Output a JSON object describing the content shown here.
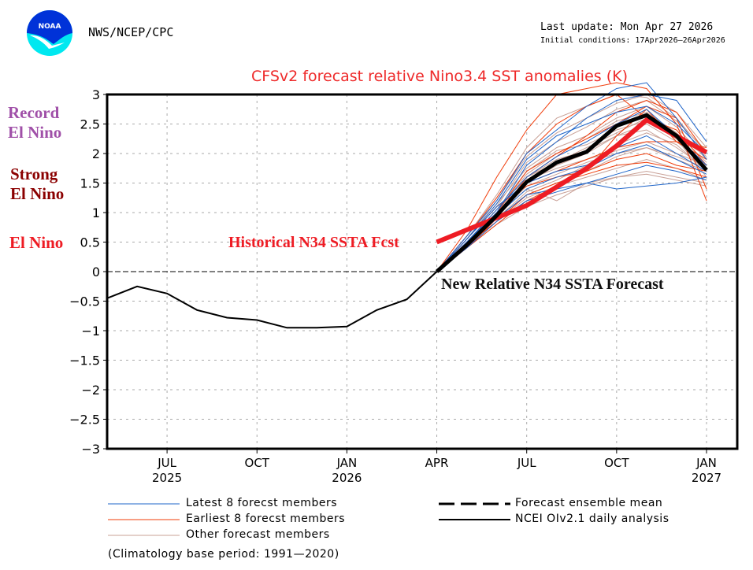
{
  "header": {
    "org": "NWS/NCEP/CPC",
    "logo_text": "NOAA",
    "last_update": "Last update: Mon Apr 27 2026",
    "initial_conditions": "Initial conditions: 17Apr2026—26Apr2026"
  },
  "categories": {
    "record": [
      "Record",
      "El Nino"
    ],
    "strong": [
      "Strong",
      "El Nino"
    ],
    "elnino": "El Nino",
    "colors": {
      "record": "#a050a8",
      "strong": "#8b0000",
      "elnino": "#ee1c24"
    }
  },
  "annotations": {
    "historical": "Historical N34 SSTA Fcst",
    "new_relative": "New Relative N34 SSTA Forecast"
  },
  "legend": {
    "latest": "Latest 8 forecst members",
    "earliest": "Earliest 8 forecst members",
    "other": "Other forecast members",
    "mean": "Forecast ensemble mean",
    "analysis": "NCEI OIv2.1 daily analysis",
    "climatology": "(Climatology base period: 1991—2020)"
  },
  "chart_data": {
    "type": "line",
    "title": "CFSv2 forecast relative Nino3.4 SST anomalies (K)",
    "xlabel": "",
    "ylabel": "",
    "ylim": [
      -3,
      3
    ],
    "xlim_months": [
      0,
      20.6
    ],
    "x_origin": "May 2025",
    "yticks": [
      3,
      2.5,
      2,
      1.5,
      1,
      0.5,
      0,
      -0.5,
      -1,
      -1.5,
      -2,
      -2.5,
      -3
    ],
    "ytick_labels": [
      "3",
      "2.5",
      "2",
      "1.5",
      "1",
      "0.5",
      "0",
      "−0.5",
      "−1",
      "−1.5",
      "−2",
      "−2.5",
      "−3"
    ],
    "xticks": [
      {
        "m": 2,
        "label": "JUL",
        "year": "2025"
      },
      {
        "m": 5,
        "label": "OCT",
        "year": ""
      },
      {
        "m": 8,
        "label": "JAN",
        "year": "2026"
      },
      {
        "m": 11,
        "label": "APR",
        "year": ""
      },
      {
        "m": 14,
        "label": "JUL",
        "year": ""
      },
      {
        "m": 17,
        "label": "OCT",
        "year": ""
      },
      {
        "m": 20,
        "label": "JAN",
        "year": "2027"
      }
    ],
    "grid": true,
    "colors": {
      "latest": "#1e64c8",
      "earliest": "#f03c0a",
      "other": "#c8a096",
      "mean": "#000000",
      "analysis": "#000000",
      "historical": "#ee1c24"
    },
    "series": [
      {
        "name": "NCEI OIv2.1 daily analysis",
        "style": "analysis",
        "x": [
          0,
          1,
          2,
          3,
          4,
          5,
          6,
          7,
          8,
          9,
          10,
          11
        ],
        "values": [
          -0.45,
          -0.25,
          -0.37,
          -0.65,
          -0.78,
          -0.82,
          -0.95,
          -0.95,
          -0.93,
          -0.65,
          -0.47,
          0.0
        ]
      },
      {
        "name": "Forecast ensemble mean",
        "style": "mean",
        "x": [
          11,
          12,
          13,
          14,
          15,
          16,
          17,
          18,
          19,
          20
        ],
        "values": [
          0.0,
          0.45,
          0.95,
          1.52,
          1.85,
          2.03,
          2.47,
          2.65,
          2.3,
          1.72
        ]
      },
      {
        "name": "Historical N34 SSTA Fcst",
        "style": "historical",
        "x": [
          11,
          14,
          16,
          17,
          18,
          20
        ],
        "values": [
          0.5,
          1.12,
          1.75,
          2.13,
          2.57,
          2.02
        ]
      },
      {
        "name": "Latest 8 forecst members",
        "style": "latest",
        "members": [
          [
            0.0,
            0.6,
            1.2,
            2.0,
            2.4,
            2.8,
            3.1,
            3.2,
            2.6,
            1.9
          ],
          [
            0.0,
            0.55,
            1.1,
            1.5,
            1.7,
            1.8,
            2.1,
            2.3,
            2.0,
            1.7
          ],
          [
            0.0,
            0.45,
            0.9,
            1.3,
            1.4,
            1.5,
            1.4,
            1.45,
            1.5,
            1.6
          ],
          [
            0.0,
            0.5,
            1.0,
            1.8,
            2.2,
            2.6,
            2.9,
            3.0,
            2.9,
            2.2
          ],
          [
            0.0,
            0.5,
            1.05,
            1.6,
            1.95,
            2.2,
            2.5,
            2.75,
            2.3,
            1.8
          ],
          [
            0.0,
            0.4,
            0.85,
            1.2,
            1.35,
            1.5,
            1.65,
            1.8,
            1.7,
            1.55
          ],
          [
            0.0,
            0.55,
            1.15,
            1.9,
            2.3,
            2.5,
            2.7,
            2.8,
            2.5,
            2.0
          ],
          [
            0.0,
            0.45,
            0.95,
            1.4,
            1.6,
            1.75,
            2.0,
            2.15,
            1.9,
            1.65
          ]
        ]
      },
      {
        "name": "Earliest 8 forecst members",
        "style": "earliest",
        "members": [
          [
            0.0,
            0.7,
            1.6,
            2.4,
            3.0,
            3.1,
            3.2,
            3.1,
            2.5,
            1.2
          ],
          [
            0.0,
            0.5,
            1.0,
            1.5,
            1.7,
            1.9,
            2.1,
            2.2,
            2.2,
            2.1
          ],
          [
            0.0,
            0.4,
            0.9,
            1.6,
            1.95,
            2.3,
            2.7,
            2.9,
            2.7,
            2.0
          ],
          [
            0.0,
            0.55,
            1.1,
            1.45,
            1.6,
            1.7,
            1.9,
            2.0,
            1.8,
            1.7
          ],
          [
            0.0,
            0.45,
            0.85,
            1.3,
            1.5,
            1.65,
            1.8,
            1.85,
            1.75,
            1.6
          ],
          [
            0.0,
            0.6,
            1.25,
            2.0,
            2.5,
            2.8,
            3.0,
            2.6,
            2.4,
            1.8
          ],
          [
            0.0,
            0.5,
            1.0,
            1.7,
            2.0,
            2.25,
            2.5,
            2.8,
            2.6,
            1.4
          ],
          [
            0.0,
            0.4,
            0.8,
            1.2,
            1.45,
            1.7,
            2.3,
            2.75,
            2.2,
            1.9
          ]
        ]
      },
      {
        "name": "Other forecast members",
        "style": "other",
        "members": [
          [
            0.0,
            0.5,
            1.0,
            1.5,
            1.8,
            2.0,
            2.3,
            2.5,
            2.2,
            1.8
          ],
          [
            0.0,
            0.45,
            0.9,
            1.3,
            1.5,
            1.7,
            1.95,
            2.1,
            1.9,
            1.7
          ],
          [
            0.0,
            0.55,
            1.15,
            1.75,
            2.1,
            2.3,
            2.6,
            2.8,
            2.45,
            1.9
          ],
          [
            0.0,
            0.4,
            0.8,
            1.1,
            1.3,
            1.45,
            1.6,
            1.7,
            1.6,
            1.5
          ],
          [
            0.0,
            0.5,
            1.05,
            1.6,
            1.9,
            2.05,
            2.3,
            2.4,
            2.1,
            1.75
          ],
          [
            0.0,
            0.6,
            1.3,
            2.1,
            2.6,
            2.8,
            3.0,
            2.95,
            2.6,
            2.0
          ],
          [
            0.0,
            0.45,
            0.95,
            1.4,
            1.2,
            1.5,
            1.6,
            1.65,
            1.55,
            1.45
          ],
          [
            0.0,
            0.5,
            1.0,
            1.55,
            1.75,
            1.9,
            2.05,
            2.2,
            2.0,
            1.8
          ],
          [
            0.0,
            0.55,
            1.1,
            1.85,
            2.2,
            2.45,
            2.75,
            2.9,
            2.55,
            2.05
          ],
          [
            0.0,
            0.45,
            0.9,
            1.35,
            1.55,
            1.8,
            2.15,
            2.35,
            2.15,
            1.7
          ],
          [
            0.0,
            0.5,
            1.0,
            1.65,
            2.0,
            2.25,
            2.55,
            2.7,
            2.35,
            1.85
          ],
          [
            0.0,
            0.4,
            0.85,
            1.25,
            1.45,
            1.6,
            1.75,
            1.9,
            1.75,
            1.55
          ],
          [
            0.0,
            0.55,
            1.2,
            1.95,
            2.35,
            2.6,
            2.85,
            3.0,
            2.7,
            2.1
          ],
          [
            0.0,
            0.5,
            1.05,
            1.7,
            2.05,
            2.15,
            2.4,
            2.55,
            2.25,
            1.6
          ],
          [
            0.0,
            0.45,
            0.95,
            1.45,
            1.65,
            1.85,
            2.0,
            2.1,
            1.95,
            1.75
          ],
          [
            0.0,
            0.5,
            0.95,
            1.6,
            1.85,
            2.1,
            2.35,
            2.6,
            2.3,
            1.95
          ]
        ]
      }
    ]
  }
}
